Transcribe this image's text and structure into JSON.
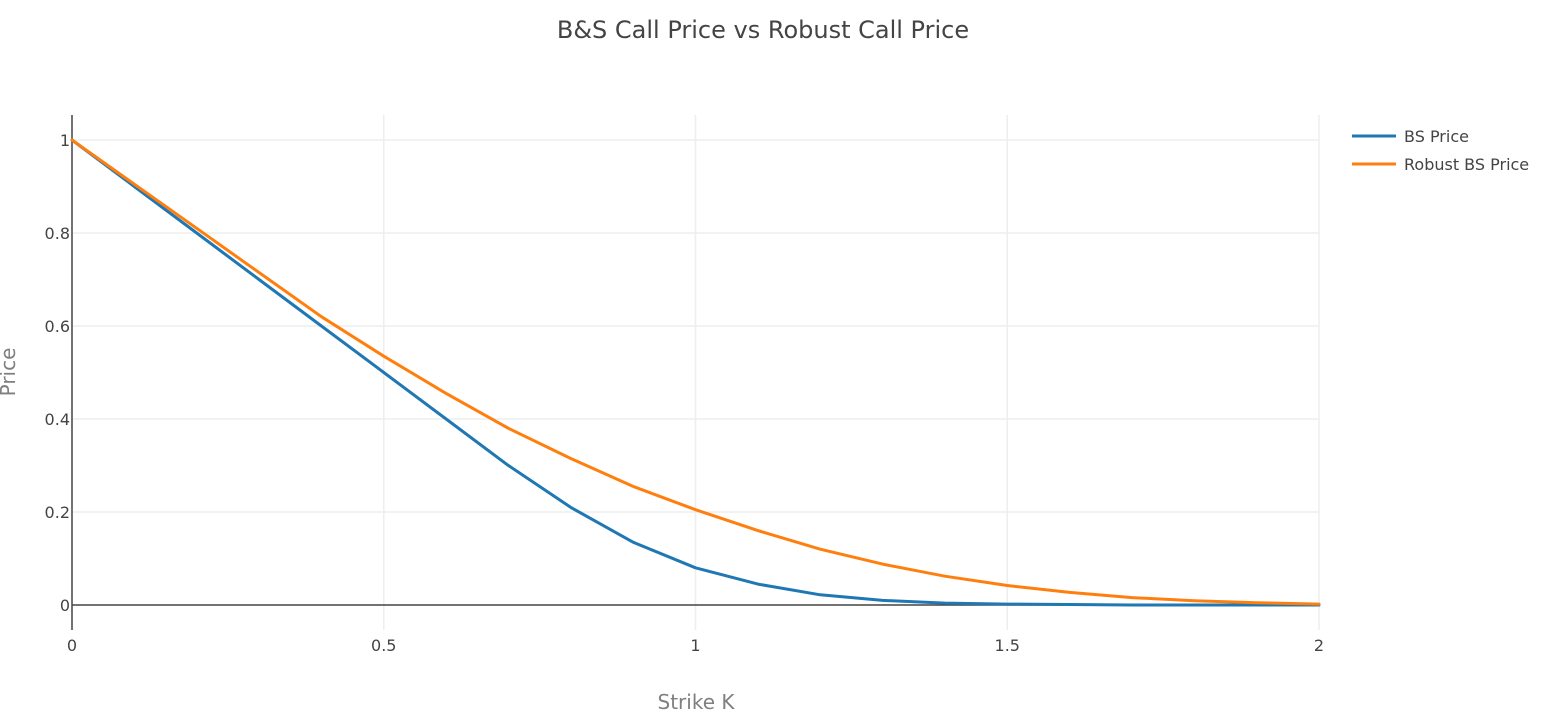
{
  "chart_data": {
    "type": "line",
    "title": "B&S Call Price vs Robust Call Price",
    "xlabel": "Strike K",
    "ylabel": "Price",
    "xlim": [
      0,
      2
    ],
    "ylim": [
      -0.05,
      1.05
    ],
    "x_ticks": [
      {
        "value": 0,
        "label": "0"
      },
      {
        "value": 0.5,
        "label": "0.5"
      },
      {
        "value": 1,
        "label": "1"
      },
      {
        "value": 1.5,
        "label": "1.5"
      },
      {
        "value": 2,
        "label": "2"
      }
    ],
    "y_ticks": [
      {
        "value": 0,
        "label": "0"
      },
      {
        "value": 0.2,
        "label": "0.2"
      },
      {
        "value": 0.4,
        "label": "0.4"
      },
      {
        "value": 0.6,
        "label": "0.6"
      },
      {
        "value": 0.8,
        "label": "0.8"
      },
      {
        "value": 1,
        "label": "1"
      }
    ],
    "grid": true,
    "legend_position": "top-right",
    "series": [
      {
        "name": "BS Price",
        "color": "#1f77b4",
        "x": [
          0,
          0.1,
          0.2,
          0.3,
          0.4,
          0.5,
          0.6,
          0.7,
          0.8,
          0.9,
          1.0,
          1.1,
          1.2,
          1.3,
          1.4,
          1.5,
          1.6,
          1.7,
          1.8,
          1.9,
          2.0
        ],
        "y": [
          1.0,
          0.9,
          0.8,
          0.7,
          0.6,
          0.5,
          0.4,
          0.3,
          0.21,
          0.135,
          0.08,
          0.045,
          0.022,
          0.01,
          0.004,
          0.002,
          0.001,
          0.0,
          0.0,
          0.0,
          0.0
        ]
      },
      {
        "name": "Robust BS Price",
        "color": "#ff7f0e",
        "x": [
          0,
          0.1,
          0.2,
          0.3,
          0.4,
          0.5,
          0.6,
          0.7,
          0.8,
          0.9,
          1.0,
          1.1,
          1.2,
          1.3,
          1.4,
          1.5,
          1.6,
          1.7,
          1.8,
          1.9,
          2.0
        ],
        "y": [
          1.0,
          0.905,
          0.81,
          0.715,
          0.62,
          0.535,
          0.455,
          0.38,
          0.315,
          0.255,
          0.205,
          0.16,
          0.12,
          0.088,
          0.062,
          0.042,
          0.027,
          0.016,
          0.009,
          0.005,
          0.002
        ]
      }
    ]
  }
}
